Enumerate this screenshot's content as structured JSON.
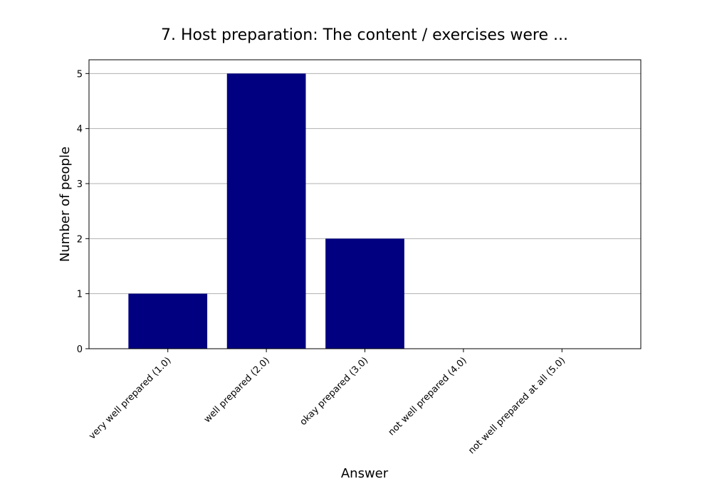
{
  "chart_data": {
    "type": "bar",
    "title": "7. Host preparation: The content / exercises were ...",
    "xlabel": "Answer",
    "ylabel": "Number of people",
    "categories": [
      "very well prepared (1.0)",
      "well prepared (2.0)",
      "okay prepared (3.0)",
      "not well prepared (4.0)",
      "not well prepared at all (5.0)"
    ],
    "values": [
      1,
      5,
      2,
      0,
      0
    ],
    "ylim": [
      0,
      5.25
    ],
    "yticks": [
      "0",
      "1",
      "2",
      "3",
      "4",
      "5"
    ],
    "grid": "horizontal",
    "bar_color": "#000080"
  }
}
